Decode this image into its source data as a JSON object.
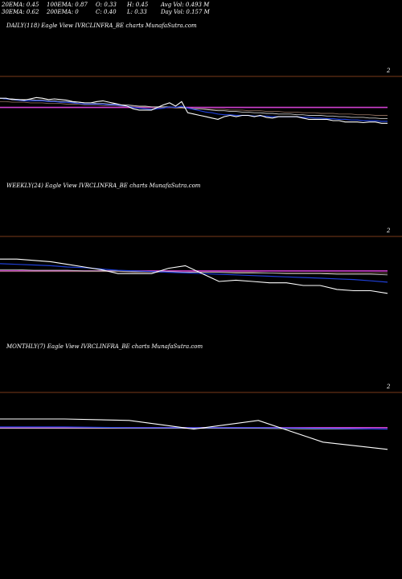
{
  "header": {
    "ema20": "20EMA: 0.45",
    "ema30": "30EMA: 0.62",
    "ema100": "100EMA: 0.87",
    "ema200": "200EMA: 0",
    "open": "O: 0.33",
    "close": "C: 0.40",
    "high": "H: 0.45",
    "low": "L: 0.33",
    "avg_vol": "Avg Vol: 0.493 M",
    "day_vol": "Day Vol: 0.157 M"
  },
  "panels": [
    {
      "title": "DAILY(118) Eagle   View  IVRCLINFRA_BE charts MunafaSutra.com",
      "axis_label": "2"
    },
    {
      "title": "WEEKLY(24) Eagle   View  IVRCLINFRA_BE charts MunafaSutra.com",
      "axis_label": "2"
    },
    {
      "title": "MONTHLY(7) Eagle   View  IVRCLINFRA_BE charts MunafaSutra.com",
      "axis_label": "2"
    }
  ],
  "colors": {
    "background": "#000000",
    "price": "#ffffff",
    "ema_short": "#1f3fd6",
    "ema_mid": "#c8c8c8",
    "ema_long": "#8a6a5a",
    "ema_magenta": "#d040d0",
    "divider": "#7a3a1a"
  },
  "chart_data": [
    {
      "type": "line",
      "title": "DAILY(118) Eagle   View  IVRCLINFRA_BE charts MunafaSutra.com",
      "x_count": 65,
      "ylim": [
        0,
        2.2
      ],
      "series": [
        {
          "role": "price",
          "values": [
            1.62,
            1.62,
            1.6,
            1.6,
            1.59,
            1.61,
            1.63,
            1.62,
            1.6,
            1.61,
            1.6,
            1.59,
            1.57,
            1.56,
            1.55,
            1.55,
            1.57,
            1.58,
            1.56,
            1.54,
            1.52,
            1.5,
            1.46,
            1.44,
            1.44,
            1.44,
            1.48,
            1.52,
            1.55,
            1.5,
            1.57,
            1.4,
            1.38,
            1.36,
            1.34,
            1.32,
            1.3,
            1.34,
            1.36,
            1.34,
            1.36,
            1.36,
            1.34,
            1.36,
            1.33,
            1.32,
            1.34,
            1.34,
            1.34,
            1.34,
            1.32,
            1.3,
            1.3,
            1.3,
            1.3,
            1.28,
            1.28,
            1.26,
            1.26,
            1.26,
            1.25,
            1.26,
            1.26,
            1.24,
            1.24
          ]
        },
        {
          "role": "ema_short",
          "values": [
            1.62,
            1.61,
            1.6,
            1.59,
            1.58,
            1.58,
            1.58,
            1.58,
            1.57,
            1.57,
            1.56,
            1.56,
            1.55,
            1.54,
            1.53,
            1.53,
            1.53,
            1.53,
            1.52,
            1.52,
            1.51,
            1.5,
            1.48,
            1.47,
            1.46,
            1.45,
            1.46,
            1.47,
            1.49,
            1.48,
            1.5,
            1.47,
            1.45,
            1.43,
            1.41,
            1.4,
            1.38,
            1.37,
            1.37,
            1.36,
            1.36,
            1.36,
            1.35,
            1.35,
            1.35,
            1.34,
            1.34,
            1.34,
            1.34,
            1.34,
            1.33,
            1.33,
            1.32,
            1.32,
            1.31,
            1.31,
            1.3,
            1.3,
            1.29,
            1.29,
            1.28,
            1.28,
            1.28,
            1.27,
            1.27
          ]
        },
        {
          "role": "ema_mid",
          "values": [
            1.62,
            1.61,
            1.61,
            1.6,
            1.6,
            1.6,
            1.59,
            1.59,
            1.58,
            1.58,
            1.57,
            1.57,
            1.56,
            1.56,
            1.55,
            1.55,
            1.54,
            1.54,
            1.53,
            1.53,
            1.52,
            1.52,
            1.51,
            1.5,
            1.5,
            1.49,
            1.49,
            1.49,
            1.49,
            1.48,
            1.48,
            1.47,
            1.46,
            1.46,
            1.45,
            1.44,
            1.43,
            1.43,
            1.42,
            1.42,
            1.41,
            1.41,
            1.4,
            1.4,
            1.39,
            1.39,
            1.38,
            1.38,
            1.38,
            1.37,
            1.37,
            1.36,
            1.36,
            1.36,
            1.35,
            1.35,
            1.34,
            1.34,
            1.33,
            1.33,
            1.33,
            1.32,
            1.32,
            1.31,
            1.31
          ]
        },
        {
          "role": "ema_long",
          "values": [
            1.57,
            1.57,
            1.56,
            1.56,
            1.56,
            1.55,
            1.55,
            1.55,
            1.54,
            1.54,
            1.54,
            1.53,
            1.53,
            1.53,
            1.52,
            1.52,
            1.52,
            1.51,
            1.51,
            1.51,
            1.5,
            1.5,
            1.5,
            1.49,
            1.49,
            1.49,
            1.48,
            1.48,
            1.48,
            1.47,
            1.47,
            1.47,
            1.46,
            1.46,
            1.46,
            1.45,
            1.45,
            1.45,
            1.44,
            1.44,
            1.44,
            1.43,
            1.43,
            1.43,
            1.42,
            1.42,
            1.42,
            1.41,
            1.41,
            1.41,
            1.4,
            1.4,
            1.4,
            1.39,
            1.39,
            1.39,
            1.38,
            1.38,
            1.38,
            1.37,
            1.37,
            1.37,
            1.36,
            1.36,
            1.36
          ]
        },
        {
          "role": "ema_magenta",
          "values": [
            1.48,
            1.48,
            1.48,
            1.48,
            1.48,
            1.48,
            1.48,
            1.48,
            1.48,
            1.48,
            1.48,
            1.48,
            1.48,
            1.48,
            1.48,
            1.48,
            1.48,
            1.48,
            1.48,
            1.48,
            1.48,
            1.48,
            1.48,
            1.48,
            1.48,
            1.48,
            1.48,
            1.48,
            1.48,
            1.48,
            1.48,
            1.48,
            1.48,
            1.48,
            1.48,
            1.48,
            1.48,
            1.48,
            1.48,
            1.48,
            1.48,
            1.48,
            1.48,
            1.48,
            1.48,
            1.48,
            1.48,
            1.48,
            1.48,
            1.48,
            1.48,
            1.48,
            1.48,
            1.48,
            1.48,
            1.48,
            1.48,
            1.48,
            1.48,
            1.48,
            1.48,
            1.48,
            1.48,
            1.48,
            1.48
          ]
        }
      ]
    },
    {
      "type": "line",
      "title": "WEEKLY(24) Eagle   View  IVRCLINFRA_BE charts MunafaSutra.com",
      "x_count": 24,
      "ylim": [
        0,
        2.2
      ],
      "series": [
        {
          "role": "price",
          "values": [
            1.62,
            1.62,
            1.6,
            1.58,
            1.54,
            1.5,
            1.46,
            1.4,
            1.4,
            1.4,
            1.48,
            1.52,
            1.4,
            1.28,
            1.3,
            1.28,
            1.26,
            1.26,
            1.22,
            1.22,
            1.16,
            1.14,
            1.14,
            1.1
          ]
        },
        {
          "role": "ema_short",
          "values": [
            1.55,
            1.54,
            1.53,
            1.52,
            1.5,
            1.49,
            1.47,
            1.45,
            1.44,
            1.43,
            1.42,
            1.41,
            1.4,
            1.39,
            1.38,
            1.37,
            1.36,
            1.35,
            1.34,
            1.33,
            1.32,
            1.31,
            1.29,
            1.27
          ]
        },
        {
          "role": "ema_mid",
          "values": [
            1.46,
            1.46,
            1.45,
            1.45,
            1.45,
            1.44,
            1.44,
            1.44,
            1.43,
            1.43,
            1.43,
            1.42,
            1.42,
            1.42,
            1.41,
            1.41,
            1.41,
            1.4,
            1.4,
            1.4,
            1.39,
            1.39,
            1.39,
            1.38
          ]
        },
        {
          "role": "ema_long",
          "values": [
            1.43,
            1.43,
            1.43,
            1.43,
            1.43,
            1.43,
            1.43,
            1.43,
            1.42,
            1.42,
            1.42,
            1.42,
            1.42,
            1.42,
            1.42,
            1.42,
            1.41,
            1.41,
            1.41,
            1.41,
            1.41,
            1.41,
            1.41,
            1.41
          ]
        },
        {
          "role": "ema_magenta",
          "values": [
            1.44,
            1.44,
            1.44,
            1.44,
            1.44,
            1.44,
            1.44,
            1.44,
            1.44,
            1.44,
            1.44,
            1.44,
            1.44,
            1.44,
            1.44,
            1.44,
            1.44,
            1.44,
            1.44,
            1.44,
            1.44,
            1.44,
            1.44,
            1.44
          ]
        }
      ]
    },
    {
      "type": "line",
      "title": "MONTHLY(7) Eagle   View  IVRCLINFRA_BE charts MunafaSutra.com",
      "x_count": 7,
      "ylim": [
        0,
        2.2
      ],
      "series": [
        {
          "role": "price",
          "values": [
            1.6,
            1.6,
            1.58,
            1.46,
            1.58,
            1.28,
            1.18
          ]
        },
        {
          "role": "ema_short",
          "values": [
            1.49,
            1.49,
            1.48,
            1.48,
            1.48,
            1.47,
            1.46
          ]
        },
        {
          "role": "ema_mid",
          "values": [
            1.47,
            1.47,
            1.47,
            1.47,
            1.47,
            1.46,
            1.46
          ]
        },
        {
          "role": "ema_magenta",
          "values": [
            1.48,
            1.48,
            1.48,
            1.48,
            1.48,
            1.48,
            1.48
          ]
        }
      ]
    }
  ]
}
